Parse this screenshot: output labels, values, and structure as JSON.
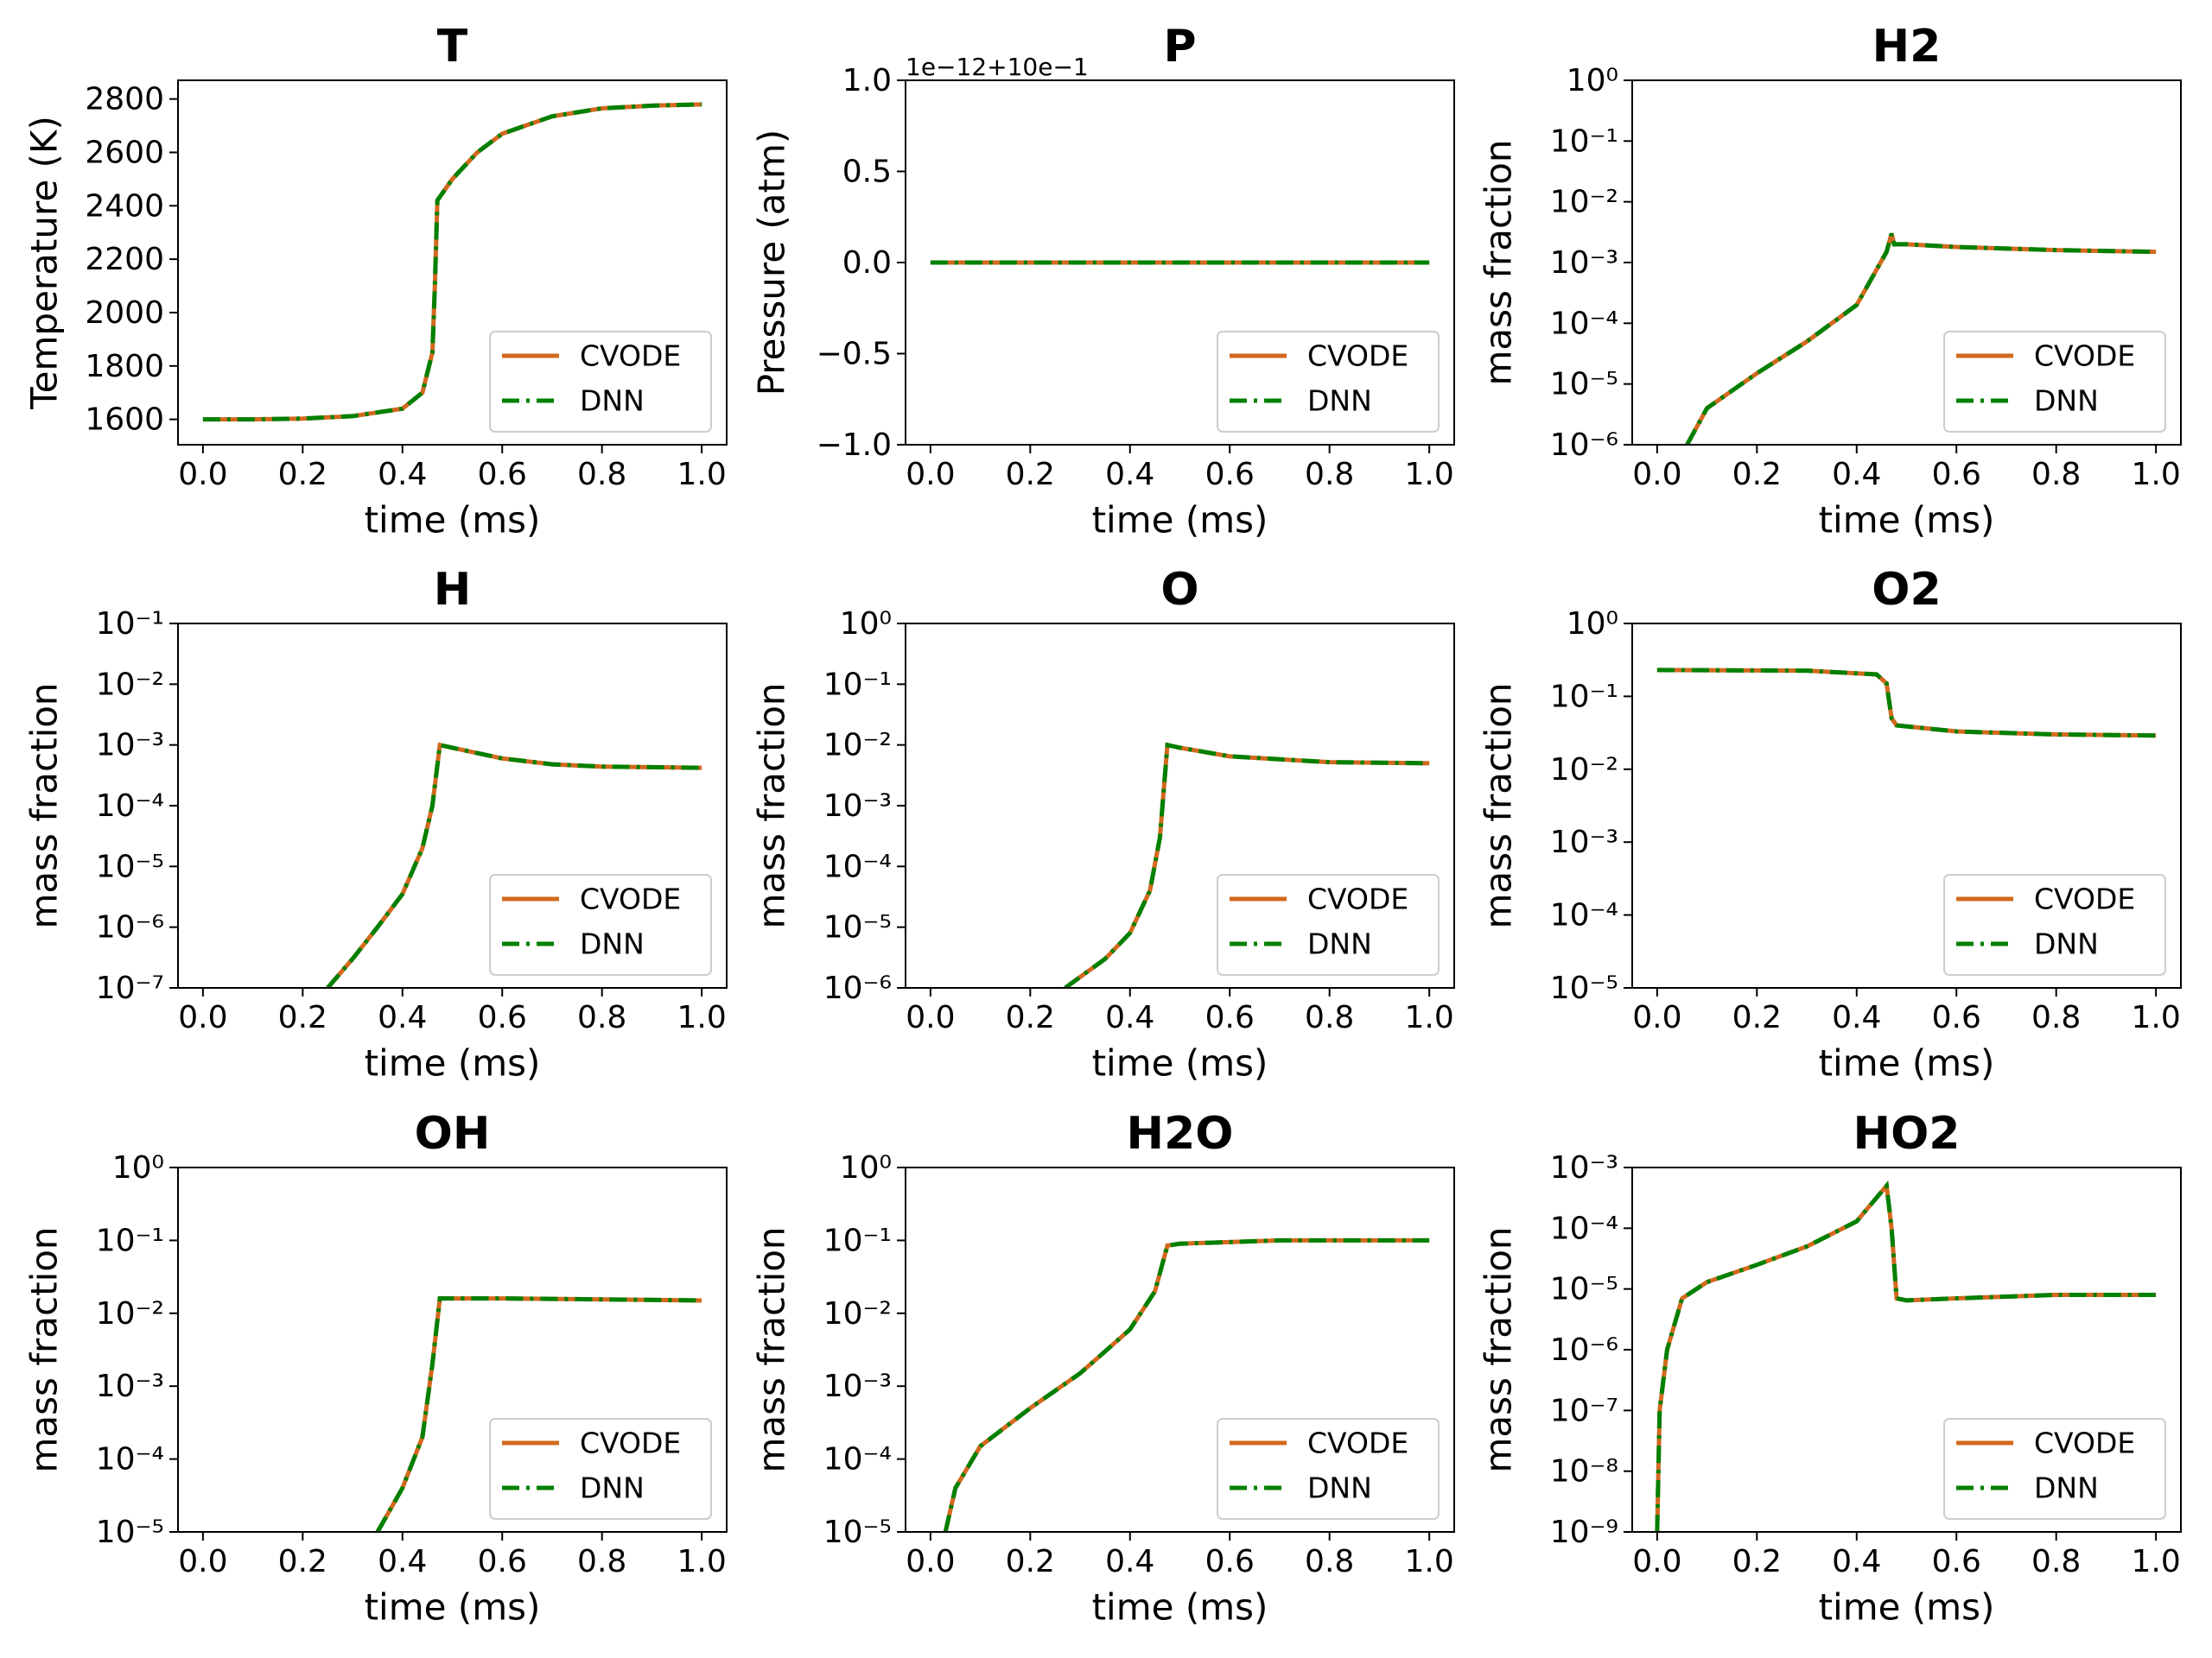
{
  "chart_data": [
    {
      "type": "line",
      "title": "T",
      "xlabel": "time (ms)",
      "ylabel": "Temperature (K)",
      "log_y": false,
      "legend": "lower right",
      "x": [
        0,
        0.1,
        0.2,
        0.3,
        0.4,
        0.44,
        0.46,
        0.465,
        0.47,
        0.5,
        0.55,
        0.6,
        0.7,
        0.8,
        0.9,
        1.0
      ],
      "series": [
        {
          "name": "CVODE",
          "color": "#d2691e",
          "linestyle": "solid",
          "values": [
            1600,
            1600,
            1603,
            1612,
            1640,
            1700,
            1850,
            2100,
            2420,
            2500,
            2600,
            2670,
            2735,
            2765,
            2775,
            2780
          ]
        },
        {
          "name": "DNN",
          "color": "#008000",
          "linestyle": "dashdot",
          "values": [
            1600,
            1600,
            1603,
            1612,
            1640,
            1700,
            1850,
            2100,
            2420,
            2500,
            2600,
            2670,
            2735,
            2765,
            2775,
            2780
          ]
        }
      ],
      "xlim": [
        -0.05,
        1.05
      ],
      "ylim": [
        1505,
        2870
      ],
      "xticks": [
        {
          "value": 0,
          "label": "0.0"
        },
        0.2,
        0.4,
        0.6,
        0.8,
        {
          "value": 1,
          "label": "1.0"
        }
      ],
      "yticks": [
        1600,
        1800,
        2000,
        2200,
        2400,
        2600,
        2800
      ]
    },
    {
      "type": "line",
      "title": "P",
      "xlabel": "time (ms)",
      "ylabel": "Pressure (atm)",
      "log_y": false,
      "legend": "lower right",
      "offset_text": "1e−12+10e−1",
      "x": [
        0,
        0.5,
        1.0
      ],
      "series": [
        {
          "name": "CVODE",
          "color": "#d2691e",
          "linestyle": "solid",
          "values": [
            0,
            0,
            0
          ]
        },
        {
          "name": "DNN",
          "color": "#008000",
          "linestyle": "dashdot",
          "values": [
            0,
            0,
            0
          ]
        }
      ],
      "xlim": [
        -0.05,
        1.05
      ],
      "ylim": [
        -1,
        1
      ],
      "xticks": [
        {
          "value": 0,
          "label": "0.0"
        },
        0.2,
        0.4,
        0.6,
        0.8,
        {
          "value": 1,
          "label": "1.0"
        }
      ],
      "yticks": [
        {
          "value": -1,
          "label": "−1.0"
        },
        {
          "value": -0.5,
          "label": "−0.5"
        },
        {
          "value": 0,
          "label": "0.0"
        },
        0.5,
        {
          "value": 1,
          "label": "1.0"
        }
      ]
    },
    {
      "type": "line",
      "title": "H2",
      "xlabel": "time (ms)",
      "ylabel": "mass fraction",
      "log_y": true,
      "legend": "lower right",
      "x": [
        0.06,
        0.1,
        0.2,
        0.3,
        0.4,
        0.46,
        0.47,
        0.475,
        0.5,
        0.6,
        0.8,
        1.0
      ],
      "series": [
        {
          "name": "CVODE",
          "color": "#d2691e",
          "linestyle": "solid",
          "values": [
            1e-06,
            4e-06,
            1.5e-05,
            5e-05,
            0.0002,
            0.0015,
            0.003,
            0.002,
            0.002,
            0.0018,
            0.0016,
            0.0015
          ]
        },
        {
          "name": "DNN",
          "color": "#008000",
          "linestyle": "dashdot",
          "values": [
            1e-06,
            4e-06,
            1.5e-05,
            5e-05,
            0.0002,
            0.0015,
            0.003,
            0.002,
            0.002,
            0.0018,
            0.0016,
            0.0015
          ]
        }
      ],
      "xlim": [
        -0.05,
        1.05
      ],
      "ylim": [
        1e-06,
        1
      ],
      "xticks": [
        {
          "value": 0,
          "label": "0.0"
        },
        0.2,
        0.4,
        0.6,
        0.8,
        {
          "value": 1,
          "label": "1.0"
        }
      ],
      "yticks": [
        {
          "value": 1e-06,
          "label": "10⁻⁶"
        },
        {
          "value": 1e-05,
          "label": "10⁻⁵"
        },
        {
          "value": 0.0001,
          "label": "10⁻⁴"
        },
        {
          "value": 0.001,
          "label": "10⁻³"
        },
        {
          "value": 0.01,
          "label": "10⁻²"
        },
        {
          "value": 0.1,
          "label": "10⁻¹"
        },
        {
          "value": 1,
          "label": "10⁰"
        }
      ]
    },
    {
      "type": "line",
      "title": "H",
      "xlabel": "time (ms)",
      "ylabel": "mass fraction",
      "log_y": true,
      "legend": "lower right",
      "x": [
        0.25,
        0.3,
        0.35,
        0.4,
        0.44,
        0.46,
        0.475,
        0.5,
        0.6,
        0.7,
        0.8,
        1.0
      ],
      "series": [
        {
          "name": "CVODE",
          "color": "#d2691e",
          "linestyle": "solid",
          "values": [
            1e-07,
            3e-07,
            1e-06,
            3.5e-06,
            2e-05,
            0.0001,
            0.001,
            0.0009,
            0.0006,
            0.00048,
            0.00044,
            0.00042
          ]
        },
        {
          "name": "DNN",
          "color": "#008000",
          "linestyle": "dashdot",
          "values": [
            1e-07,
            3e-07,
            1e-06,
            3.5e-06,
            2e-05,
            0.0001,
            0.001,
            0.0009,
            0.0006,
            0.00048,
            0.00044,
            0.00042
          ]
        }
      ],
      "xlim": [
        -0.05,
        1.05
      ],
      "ylim": [
        1e-07,
        0.1
      ],
      "xticks": [
        {
          "value": 0,
          "label": "0.0"
        },
        0.2,
        0.4,
        0.6,
        0.8,
        {
          "value": 1,
          "label": "1.0"
        }
      ],
      "yticks": [
        {
          "value": 1e-07,
          "label": "10⁻⁷"
        },
        {
          "value": 1e-06,
          "label": "10⁻⁶"
        },
        {
          "value": 1e-05,
          "label": "10⁻⁵"
        },
        {
          "value": 0.0001,
          "label": "10⁻⁴"
        },
        {
          "value": 0.001,
          "label": "10⁻³"
        },
        {
          "value": 0.01,
          "label": "10⁻²"
        },
        {
          "value": 0.1,
          "label": "10⁻¹"
        }
      ]
    },
    {
      "type": "line",
      "title": "O",
      "xlabel": "time (ms)",
      "ylabel": "mass fraction",
      "log_y": true,
      "legend": "lower right",
      "x": [
        0.27,
        0.35,
        0.4,
        0.44,
        0.46,
        0.475,
        0.5,
        0.6,
        0.8,
        1.0
      ],
      "series": [
        {
          "name": "CVODE",
          "color": "#d2691e",
          "linestyle": "solid",
          "values": [
            1e-06,
            3e-06,
            8e-06,
            4e-05,
            0.0003,
            0.01,
            0.009,
            0.0065,
            0.0052,
            0.005
          ]
        },
        {
          "name": "DNN",
          "color": "#008000",
          "linestyle": "dashdot",
          "values": [
            1e-06,
            3e-06,
            8e-06,
            4e-05,
            0.0003,
            0.01,
            0.009,
            0.0065,
            0.0052,
            0.005
          ]
        }
      ],
      "xlim": [
        -0.05,
        1.05
      ],
      "ylim": [
        1e-06,
        1
      ],
      "xticks": [
        {
          "value": 0,
          "label": "0.0"
        },
        0.2,
        0.4,
        0.6,
        0.8,
        {
          "value": 1,
          "label": "1.0"
        }
      ],
      "yticks": [
        {
          "value": 1e-06,
          "label": "10⁻⁶"
        },
        {
          "value": 1e-05,
          "label": "10⁻⁵"
        },
        {
          "value": 0.0001,
          "label": "10⁻⁴"
        },
        {
          "value": 0.001,
          "label": "10⁻³"
        },
        {
          "value": 0.01,
          "label": "10⁻²"
        },
        {
          "value": 0.1,
          "label": "10⁻¹"
        },
        {
          "value": 1,
          "label": "10⁰"
        }
      ]
    },
    {
      "type": "line",
      "title": "O2",
      "xlabel": "time (ms)",
      "ylabel": "mass fraction",
      "log_y": true,
      "legend": "lower right",
      "x": [
        0,
        0.3,
        0.44,
        0.46,
        0.47,
        0.48,
        0.6,
        0.8,
        1.0
      ],
      "series": [
        {
          "name": "CVODE",
          "color": "#d2691e",
          "linestyle": "solid",
          "values": [
            0.23,
            0.225,
            0.2,
            0.15,
            0.05,
            0.04,
            0.033,
            0.03,
            0.029
          ]
        },
        {
          "name": "DNN",
          "color": "#008000",
          "linestyle": "dashdot",
          "values": [
            0.23,
            0.225,
            0.2,
            0.15,
            0.05,
            0.04,
            0.033,
            0.03,
            0.029
          ]
        }
      ],
      "xlim": [
        -0.05,
        1.05
      ],
      "ylim": [
        1e-05,
        1
      ],
      "xticks": [
        {
          "value": 0,
          "label": "0.0"
        },
        0.2,
        0.4,
        0.6,
        0.8,
        {
          "value": 1,
          "label": "1.0"
        }
      ],
      "yticks": [
        {
          "value": 1e-05,
          "label": "10⁻⁵"
        },
        {
          "value": 0.0001,
          "label": "10⁻⁴"
        },
        {
          "value": 0.001,
          "label": "10⁻³"
        },
        {
          "value": 0.01,
          "label": "10⁻²"
        },
        {
          "value": 0.1,
          "label": "10⁻¹"
        },
        {
          "value": 1,
          "label": "10⁰"
        }
      ]
    },
    {
      "type": "line",
      "title": "OH",
      "xlabel": "time (ms)",
      "ylabel": "mass fraction",
      "log_y": true,
      "legend": "lower right",
      "x": [
        0.35,
        0.4,
        0.44,
        0.46,
        0.475,
        0.6,
        1.0
      ],
      "series": [
        {
          "name": "CVODE",
          "color": "#d2691e",
          "linestyle": "solid",
          "values": [
            1e-05,
            4e-05,
            0.0002,
            0.002,
            0.016,
            0.016,
            0.015
          ]
        },
        {
          "name": "DNN",
          "color": "#008000",
          "linestyle": "dashdot",
          "values": [
            1e-05,
            4e-05,
            0.0002,
            0.002,
            0.016,
            0.016,
            0.015
          ]
        }
      ],
      "xlim": [
        -0.05,
        1.05
      ],
      "ylim": [
        1e-05,
        1
      ],
      "xticks": [
        {
          "value": 0,
          "label": "0.0"
        },
        0.2,
        0.4,
        0.6,
        0.8,
        {
          "value": 1,
          "label": "1.0"
        }
      ],
      "yticks": [
        {
          "value": 1e-05,
          "label": "10⁻⁵"
        },
        {
          "value": 0.0001,
          "label": "10⁻⁴"
        },
        {
          "value": 0.001,
          "label": "10⁻³"
        },
        {
          "value": 0.01,
          "label": "10⁻²"
        },
        {
          "value": 0.1,
          "label": "10⁻¹"
        },
        {
          "value": 1,
          "label": "10⁰"
        }
      ]
    },
    {
      "type": "line",
      "title": "H2O",
      "xlabel": "time (ms)",
      "ylabel": "mass fraction",
      "log_y": true,
      "legend": "lower right",
      "x": [
        0.03,
        0.05,
        0.1,
        0.2,
        0.3,
        0.4,
        0.45,
        0.475,
        0.5,
        0.7,
        1.0
      ],
      "series": [
        {
          "name": "CVODE",
          "color": "#d2691e",
          "linestyle": "solid",
          "values": [
            1e-05,
            4e-05,
            0.00015,
            0.0005,
            0.0015,
            0.006,
            0.02,
            0.085,
            0.09,
            0.1,
            0.1
          ]
        },
        {
          "name": "DNN",
          "color": "#008000",
          "linestyle": "dashdot",
          "values": [
            1e-05,
            4e-05,
            0.00015,
            0.0005,
            0.0015,
            0.006,
            0.02,
            0.085,
            0.09,
            0.1,
            0.1
          ]
        }
      ],
      "xlim": [
        -0.05,
        1.05
      ],
      "ylim": [
        1e-05,
        1
      ],
      "xticks": [
        {
          "value": 0,
          "label": "0.0"
        },
        0.2,
        0.4,
        0.6,
        0.8,
        {
          "value": 1,
          "label": "1.0"
        }
      ],
      "yticks": [
        {
          "value": 1e-05,
          "label": "10⁻⁵"
        },
        {
          "value": 0.0001,
          "label": "10⁻⁴"
        },
        {
          "value": 0.001,
          "label": "10⁻³"
        },
        {
          "value": 0.01,
          "label": "10⁻²"
        },
        {
          "value": 0.1,
          "label": "10⁻¹"
        },
        {
          "value": 1,
          "label": "10⁰"
        }
      ]
    },
    {
      "type": "line",
      "title": "HO2",
      "xlabel": "time (ms)",
      "ylabel": "mass fraction",
      "log_y": true,
      "legend": "lower right",
      "x": [
        0,
        0.005,
        0.02,
        0.05,
        0.1,
        0.2,
        0.3,
        0.4,
        0.45,
        0.46,
        0.47,
        0.48,
        0.5,
        0.6,
        0.8,
        1.0
      ],
      "series": [
        {
          "name": "CVODE",
          "color": "#d2691e",
          "linestyle": "solid",
          "values": [
            1e-09,
            1e-07,
            1e-06,
            7e-06,
            1.3e-05,
            2.5e-05,
            5e-05,
            0.00013,
            0.0004,
            0.0005,
            0.0001,
            7e-06,
            6.5e-06,
            7e-06,
            8e-06,
            8e-06
          ]
        },
        {
          "name": "DNN",
          "color": "#008000",
          "linestyle": "dashdot",
          "values": [
            1e-09,
            1e-07,
            1e-06,
            7e-06,
            1.3e-05,
            2.5e-05,
            5e-05,
            0.00013,
            0.0004,
            0.0005,
            0.0001,
            7e-06,
            6.5e-06,
            7e-06,
            8e-06,
            8e-06
          ]
        }
      ],
      "xlim": [
        -0.05,
        1.05
      ],
      "ylim": [
        1e-09,
        0.001
      ],
      "xticks": [
        {
          "value": 0,
          "label": "0.0"
        },
        0.2,
        0.4,
        0.6,
        0.8,
        {
          "value": 1,
          "label": "1.0"
        }
      ],
      "yticks": [
        {
          "value": 1e-09,
          "label": "10⁻⁹"
        },
        {
          "value": 1e-08,
          "label": "10⁻⁸"
        },
        {
          "value": 1e-07,
          "label": "10⁻⁷"
        },
        {
          "value": 1e-06,
          "label": "10⁻⁶"
        },
        {
          "value": 1e-05,
          "label": "10⁻⁵"
        },
        {
          "value": 0.0001,
          "label": "10⁻⁴"
        },
        {
          "value": 0.001,
          "label": "10⁻³"
        }
      ]
    }
  ]
}
